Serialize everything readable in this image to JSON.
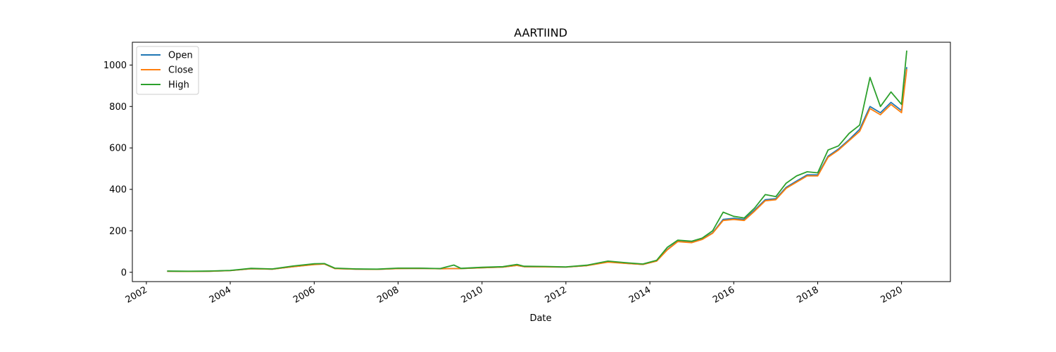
{
  "chart_data": {
    "type": "line",
    "title": "AARTIIND",
    "xlabel": "Date",
    "ylabel": "",
    "xlim": [
      "2001-09-01",
      "2021-03-01"
    ],
    "ylim": [
      -45,
      1110
    ],
    "x_ticks": [
      "2002",
      "2004",
      "2006",
      "2008",
      "2010",
      "2012",
      "2014",
      "2016",
      "2018",
      "2020"
    ],
    "y_ticks": [
      0,
      200,
      400,
      600,
      800,
      1000
    ],
    "grid": false,
    "legend_position": "top-left",
    "x": [
      "2002-07-01",
      "2003-01-01",
      "2003-07-01",
      "2004-01-01",
      "2004-07-01",
      "2005-01-01",
      "2005-07-01",
      "2006-01-01",
      "2006-04-01",
      "2006-07-01",
      "2007-01-01",
      "2007-07-01",
      "2008-01-01",
      "2008-07-01",
      "2009-01-01",
      "2009-05-01",
      "2009-07-01",
      "2010-01-01",
      "2010-07-01",
      "2010-11-01",
      "2011-01-01",
      "2011-07-01",
      "2012-01-01",
      "2012-07-01",
      "2013-01-01",
      "2013-07-01",
      "2013-11-01",
      "2014-03-01",
      "2014-06-01",
      "2014-09-01",
      "2015-01-01",
      "2015-04-01",
      "2015-07-01",
      "2015-10-01",
      "2016-01-01",
      "2016-04-01",
      "2016-07-01",
      "2016-10-01",
      "2017-01-01",
      "2017-04-01",
      "2017-07-01",
      "2017-10-01",
      "2018-01-01",
      "2018-04-01",
      "2018-07-01",
      "2018-10-01",
      "2019-01-01",
      "2019-04-01",
      "2019-07-01",
      "2019-10-01",
      "2020-01-01",
      "2020-02-15"
    ],
    "series": [
      {
        "name": "Open",
        "color": "#1f77b4",
        "values": [
          5,
          4,
          5,
          8,
          17,
          15,
          27,
          38,
          40,
          18,
          15,
          14,
          18,
          19,
          17,
          18,
          18,
          22,
          25,
          33,
          27,
          26,
          25,
          32,
          50,
          42,
          38,
          55,
          110,
          150,
          145,
          160,
          190,
          255,
          260,
          255,
          300,
          350,
          355,
          410,
          440,
          470,
          470,
          560,
          595,
          640,
          690,
          800,
          770,
          820,
          780,
          990
        ]
      },
      {
        "name": "Close",
        "color": "#ff7f0e",
        "values": [
          5,
          4,
          5,
          8,
          17,
          15,
          27,
          37,
          40,
          18,
          15,
          14,
          18,
          19,
          17,
          18,
          18,
          22,
          25,
          33,
          27,
          26,
          25,
          32,
          49,
          42,
          38,
          54,
          108,
          148,
          143,
          158,
          188,
          250,
          255,
          250,
          295,
          345,
          350,
          405,
          435,
          465,
          465,
          555,
          590,
          635,
          680,
          790,
          760,
          810,
          770,
          980
        ]
      },
      {
        "name": "High",
        "color": "#2ca02c",
        "values": [
          6,
          5,
          6,
          9,
          19,
          16,
          30,
          41,
          42,
          20,
          16,
          15,
          20,
          20,
          18,
          35,
          19,
          24,
          27,
          38,
          29,
          28,
          26,
          34,
          54,
          45,
          40,
          58,
          120,
          155,
          150,
          165,
          200,
          290,
          270,
          262,
          310,
          375,
          365,
          430,
          465,
          485,
          480,
          590,
          610,
          670,
          710,
          940,
          800,
          870,
          810,
          1070
        ]
      }
    ]
  }
}
